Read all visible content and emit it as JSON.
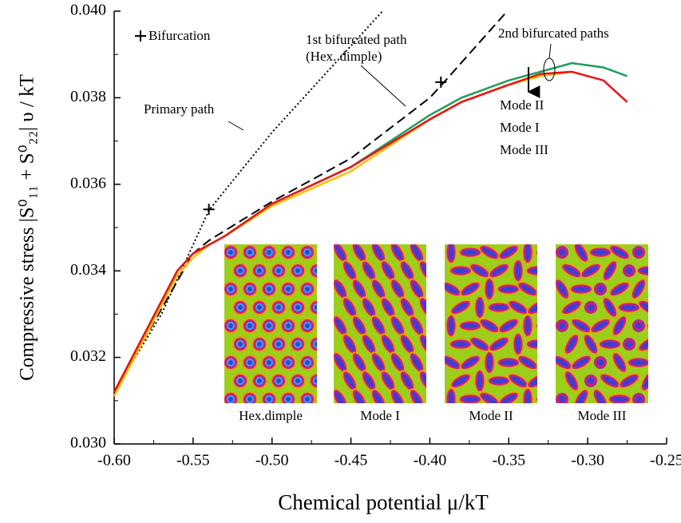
{
  "chart_data": {
    "type": "line",
    "x_label": "Chemical potential μ/kT",
    "y_label": "Compressive stress |S⁰₁₁ + S⁰₂₂| υ / kT",
    "xlim": [
      -0.6,
      -0.25
    ],
    "ylim": [
      0.03,
      0.04
    ],
    "xticks": [
      {
        "value": -0.6,
        "label": "-0.60"
      },
      {
        "value": -0.55,
        "label": "-0.55"
      },
      {
        "value": -0.5,
        "label": "-0.50"
      },
      {
        "value": -0.45,
        "label": "-0.45"
      },
      {
        "value": -0.4,
        "label": "-0.40"
      },
      {
        "value": -0.35,
        "label": "-0.35"
      },
      {
        "value": -0.3,
        "label": "-0.30"
      },
      {
        "value": -0.25,
        "label": "-0.25"
      }
    ],
    "yticks": [
      {
        "value": 0.03,
        "label": "0.030"
      },
      {
        "value": 0.032,
        "label": "0.032"
      },
      {
        "value": 0.034,
        "label": "0.034"
      },
      {
        "value": 0.036,
        "label": "0.036"
      },
      {
        "value": 0.038,
        "label": "0.038"
      },
      {
        "value": 0.04,
        "label": "0.040"
      }
    ],
    "series": [
      {
        "name": "Primary path",
        "color": "#000000",
        "line_style": "dotted",
        "x": [
          -0.6,
          -0.57,
          -0.55,
          -0.54,
          -0.5,
          -0.45,
          -0.43
        ],
        "values": [
          0.0312,
          0.033,
          0.0346,
          0.0354,
          0.0372,
          0.0392,
          0.04
        ]
      },
      {
        "name": "1st bifurcated path",
        "color": "#000000",
        "line_style": "dashed",
        "x": [
          -0.6,
          -0.55,
          -0.54,
          -0.5,
          -0.45,
          -0.4,
          -0.39,
          -0.351
        ],
        "values": [
          0.0312,
          0.0344,
          0.0347,
          0.0356,
          0.0366,
          0.038,
          0.0384,
          0.04
        ]
      },
      {
        "name": "Mode II",
        "color": "#1f9e5a",
        "line_style": "solid",
        "x": [
          -0.6,
          -0.58,
          -0.56,
          -0.55,
          -0.54,
          -0.53,
          -0.5,
          -0.45,
          -0.4,
          -0.38,
          -0.35,
          -0.33,
          -0.31,
          -0.29,
          -0.275
        ],
        "values": [
          0.0312,
          0.0326,
          0.034,
          0.0344,
          0.0346,
          0.0348,
          0.03555,
          0.0364,
          0.0376,
          0.038,
          0.0384,
          0.0386,
          0.0388,
          0.0387,
          0.0385
        ]
      },
      {
        "name": "Mode I",
        "color": "#ffc000",
        "line_style": "solid",
        "x": [
          -0.6,
          -0.58,
          -0.56,
          -0.55,
          -0.54,
          -0.53,
          -0.5,
          -0.45,
          -0.4,
          -0.38,
          -0.35,
          -0.33,
          -0.31
        ],
        "values": [
          0.0311,
          0.0325,
          0.0339,
          0.0343,
          0.0346,
          0.0348,
          0.0355,
          0.0363,
          0.0375,
          0.0379,
          0.0383,
          0.0385,
          0.0386
        ]
      },
      {
        "name": "Mode III",
        "color": "#ee1111",
        "line_style": "solid",
        "x": [
          -0.6,
          -0.58,
          -0.56,
          -0.55,
          -0.54,
          -0.53,
          -0.5,
          -0.45,
          -0.4,
          -0.38,
          -0.35,
          -0.33,
          -0.31,
          -0.29,
          -0.275
        ],
        "values": [
          0.0312,
          0.0326,
          0.034,
          0.0344,
          0.0346,
          0.0348,
          0.03555,
          0.0364,
          0.0375,
          0.0379,
          0.0383,
          0.03855,
          0.0386,
          0.0384,
          0.0379
        ]
      }
    ],
    "bifurcation": {
      "name": "Bifurcation",
      "x": [
        -0.54,
        -0.393
      ],
      "values": [
        0.03542,
        0.03836
      ]
    },
    "annotations": [
      "Primary path",
      "1st bifurcated path",
      "(Hex. dimple)",
      "2nd bifurcated paths"
    ],
    "inset_labels": [
      "Hex.dimple",
      "Mode I",
      "Mode II",
      "Mode III"
    ]
  }
}
